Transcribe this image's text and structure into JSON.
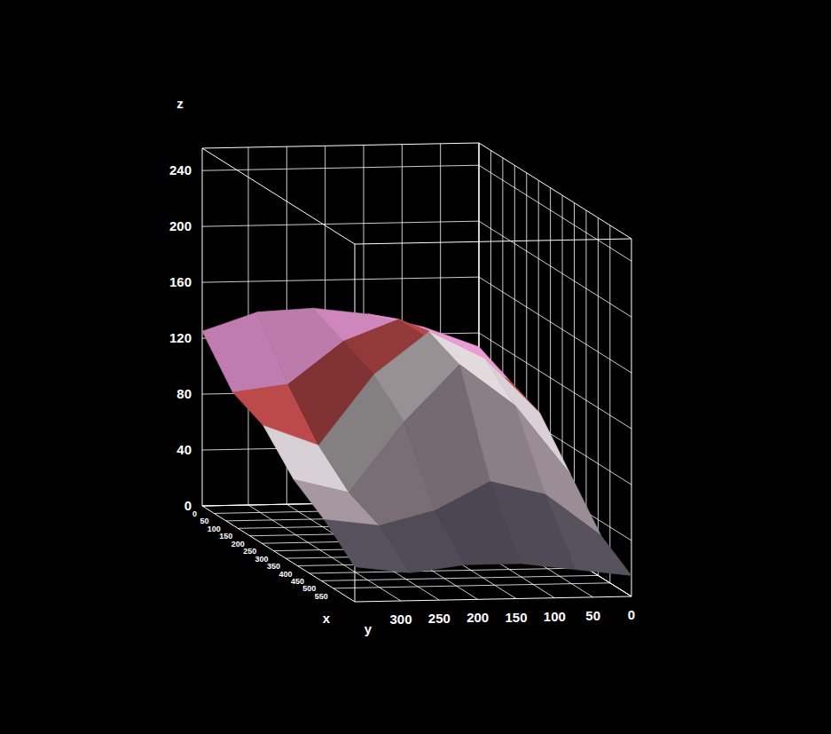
{
  "chart_data": {
    "type": "surface",
    "xlabel": "x",
    "ylabel": "y",
    "zlabel": "z",
    "x": [
      0,
      128,
      256,
      384,
      512,
      640
    ],
    "y": [
      0,
      72,
      144,
      216,
      288,
      360
    ],
    "z": [
      [
        110,
        125,
        135,
        140,
        138,
        125
      ],
      [
        100,
        120,
        145,
        130,
        100,
        95
      ],
      [
        90,
        130,
        150,
        120,
        70,
        85
      ],
      [
        60,
        110,
        140,
        100,
        50,
        60
      ],
      [
        30,
        60,
        70,
        50,
        40,
        45
      ],
      [
        15,
        20,
        25,
        25,
        20,
        25
      ]
    ],
    "colors": [
      "#d88cc4",
      "#b84848",
      "#d0c8cc",
      "#9c8e96",
      "#55505c"
    ],
    "xlim": [
      0,
      640
    ],
    "ylim": [
      0,
      360
    ],
    "zlim": [
      0,
      256
    ],
    "xticks": [
      0,
      50,
      100,
      150,
      200,
      250,
      300,
      350,
      400,
      450,
      500,
      550
    ],
    "yticks": [
      0,
      50,
      100,
      150,
      200,
      250,
      300
    ],
    "zticks": [
      0,
      40,
      80,
      120,
      160,
      200,
      240
    ],
    "grid": true
  }
}
